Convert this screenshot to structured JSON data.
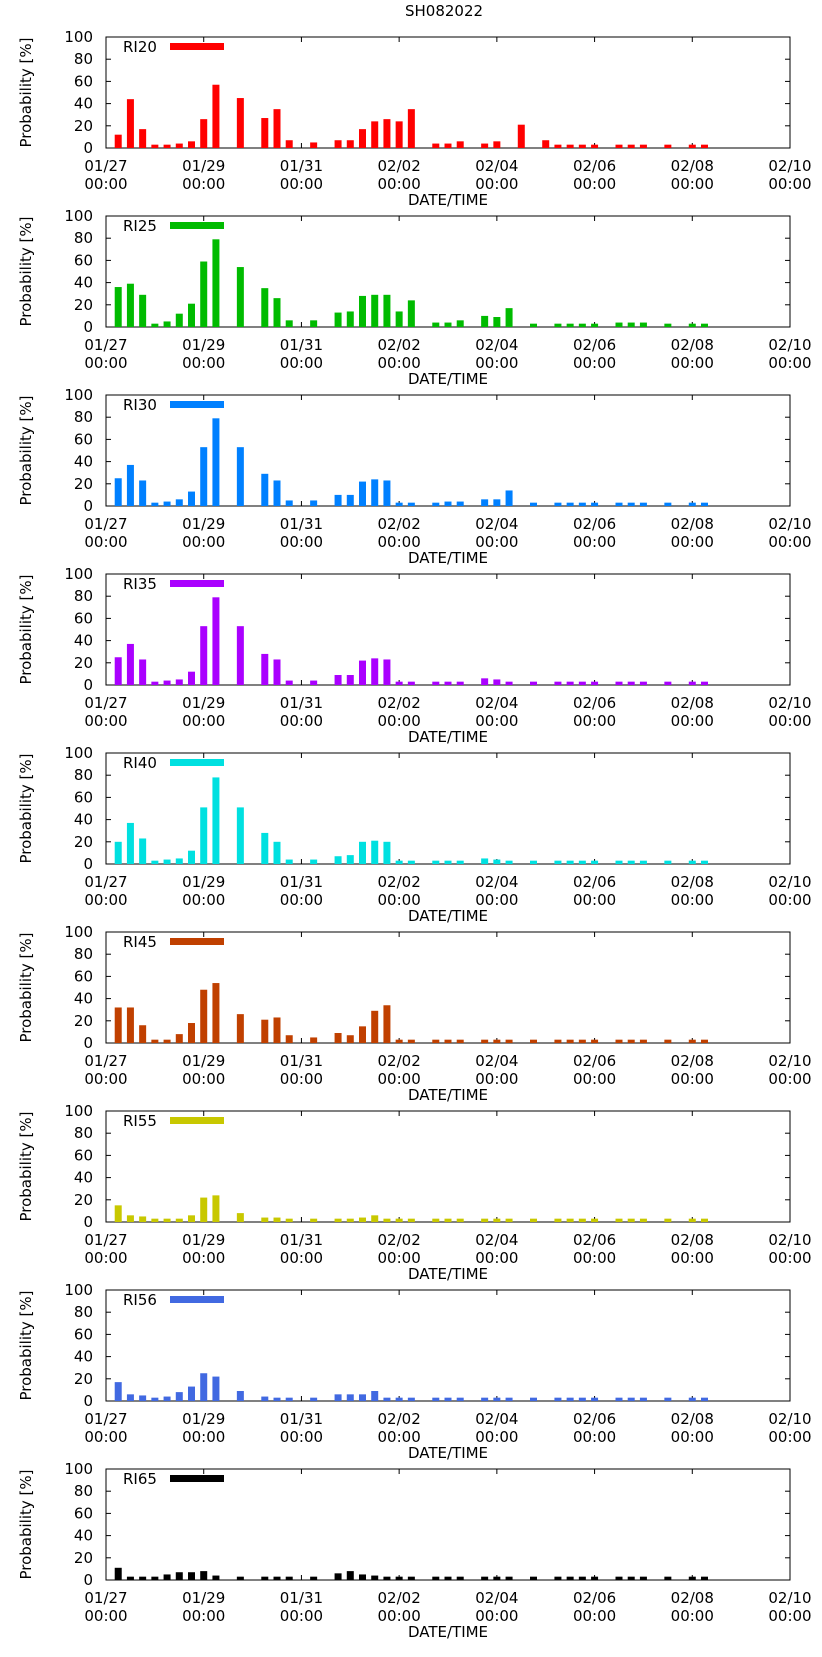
{
  "figure": {
    "title": "SH082022"
  },
  "chart_data": [
    {
      "type": "bar",
      "legend": "RI20",
      "color": "#ff0000",
      "ylabel": "Probability [%]",
      "xlabel": "DATE/TIME",
      "ylim": [
        0,
        100
      ],
      "yticks": [
        "0",
        "20",
        "40",
        "60",
        "80",
        "100"
      ],
      "xticks": [
        [
          "01/27",
          "00:00"
        ],
        [
          "01/29",
          "00:00"
        ],
        [
          "01/31",
          "00:00"
        ],
        [
          "02/02",
          "00:00"
        ],
        [
          "02/04",
          "00:00"
        ],
        [
          "02/06",
          "00:00"
        ],
        [
          "02/08",
          "00:00"
        ],
        [
          "02/10",
          "00:00"
        ]
      ],
      "x_hours": [
        6,
        12,
        18,
        24,
        30,
        36,
        42,
        48,
        54,
        66,
        78,
        84,
        90,
        102,
        114,
        120,
        126,
        132,
        138,
        144,
        150,
        162,
        168,
        174,
        186,
        192,
        204,
        216,
        222,
        228,
        234,
        240,
        252,
        258,
        264,
        276,
        288,
        294
      ],
      "values": [
        12,
        44,
        17,
        3,
        3,
        4,
        6,
        26,
        57,
        45,
        27,
        35,
        7,
        5,
        7,
        7,
        17,
        24,
        26,
        24,
        35,
        4,
        4,
        6,
        4,
        6,
        21,
        7,
        3,
        3,
        3,
        3,
        3,
        3,
        3,
        3,
        3,
        3
      ]
    },
    {
      "type": "bar",
      "legend": "RI25",
      "color": "#00bb00",
      "ylabel": "Probability [%]",
      "xlabel": "DATE/TIME",
      "ylim": [
        0,
        100
      ],
      "yticks": [
        "0",
        "20",
        "40",
        "60",
        "80",
        "100"
      ],
      "xticks": [
        [
          "01/27",
          "00:00"
        ],
        [
          "01/29",
          "00:00"
        ],
        [
          "01/31",
          "00:00"
        ],
        [
          "02/02",
          "00:00"
        ],
        [
          "02/04",
          "00:00"
        ],
        [
          "02/06",
          "00:00"
        ],
        [
          "02/08",
          "00:00"
        ],
        [
          "02/10",
          "00:00"
        ]
      ],
      "x_hours": [
        6,
        12,
        18,
        24,
        30,
        36,
        42,
        48,
        54,
        66,
        78,
        84,
        90,
        102,
        114,
        120,
        126,
        132,
        138,
        144,
        150,
        162,
        168,
        174,
        186,
        192,
        198,
        210,
        222,
        228,
        234,
        240,
        252,
        258,
        264,
        276,
        288,
        294
      ],
      "values": [
        36,
        39,
        29,
        3,
        5,
        12,
        21,
        59,
        79,
        54,
        35,
        26,
        6,
        6,
        13,
        14,
        28,
        29,
        29,
        14,
        24,
        4,
        4,
        6,
        10,
        9,
        17,
        3,
        3,
        3,
        3,
        3,
        4,
        4,
        4,
        3,
        3,
        3
      ]
    },
    {
      "type": "bar",
      "legend": "RI30",
      "color": "#0080ff",
      "ylabel": "Probability [%]",
      "xlabel": "DATE/TIME",
      "ylim": [
        0,
        100
      ],
      "yticks": [
        "0",
        "20",
        "40",
        "60",
        "80",
        "100"
      ],
      "xticks": [
        [
          "01/27",
          "00:00"
        ],
        [
          "01/29",
          "00:00"
        ],
        [
          "01/31",
          "00:00"
        ],
        [
          "02/02",
          "00:00"
        ],
        [
          "02/04",
          "00:00"
        ],
        [
          "02/06",
          "00:00"
        ],
        [
          "02/08",
          "00:00"
        ],
        [
          "02/10",
          "00:00"
        ]
      ],
      "x_hours": [
        6,
        12,
        18,
        24,
        30,
        36,
        42,
        48,
        54,
        66,
        78,
        84,
        90,
        102,
        114,
        120,
        126,
        132,
        138,
        144,
        150,
        162,
        168,
        174,
        186,
        192,
        198,
        210,
        222,
        228,
        234,
        240,
        252,
        258,
        264,
        276,
        288,
        294
      ],
      "values": [
        25,
        37,
        23,
        3,
        4,
        6,
        13,
        53,
        79,
        53,
        29,
        23,
        5,
        5,
        10,
        10,
        22,
        24,
        23,
        3,
        3,
        3,
        4,
        4,
        6,
        6,
        14,
        3,
        3,
        3,
        3,
        3,
        3,
        3,
        3,
        3,
        3,
        3
      ]
    },
    {
      "type": "bar",
      "legend": "RI35",
      "color": "#aa00ff",
      "ylabel": "Probability [%]",
      "xlabel": "DATE/TIME",
      "ylim": [
        0,
        100
      ],
      "yticks": [
        "0",
        "20",
        "40",
        "60",
        "80",
        "100"
      ],
      "xticks": [
        [
          "01/27",
          "00:00"
        ],
        [
          "01/29",
          "00:00"
        ],
        [
          "01/31",
          "00:00"
        ],
        [
          "02/02",
          "00:00"
        ],
        [
          "02/04",
          "00:00"
        ],
        [
          "02/06",
          "00:00"
        ],
        [
          "02/08",
          "00:00"
        ],
        [
          "02/10",
          "00:00"
        ]
      ],
      "x_hours": [
        6,
        12,
        18,
        24,
        30,
        36,
        42,
        48,
        54,
        66,
        78,
        84,
        90,
        102,
        114,
        120,
        126,
        132,
        138,
        144,
        150,
        162,
        168,
        174,
        186,
        192,
        198,
        210,
        222,
        228,
        234,
        240,
        252,
        258,
        264,
        276,
        288,
        294
      ],
      "values": [
        25,
        37,
        23,
        3,
        4,
        5,
        12,
        53,
        79,
        53,
        28,
        23,
        4,
        4,
        9,
        9,
        22,
        24,
        23,
        3,
        3,
        3,
        3,
        3,
        6,
        5,
        3,
        3,
        3,
        3,
        3,
        3,
        3,
        3,
        3,
        3,
        3,
        3
      ]
    },
    {
      "type": "bar",
      "legend": "RI40",
      "color": "#00e0e0",
      "ylabel": "Probability [%]",
      "xlabel": "DATE/TIME",
      "ylim": [
        0,
        100
      ],
      "yticks": [
        "0",
        "20",
        "40",
        "60",
        "80",
        "100"
      ],
      "xticks": [
        [
          "01/27",
          "00:00"
        ],
        [
          "01/29",
          "00:00"
        ],
        [
          "01/31",
          "00:00"
        ],
        [
          "02/02",
          "00:00"
        ],
        [
          "02/04",
          "00:00"
        ],
        [
          "02/06",
          "00:00"
        ],
        [
          "02/08",
          "00:00"
        ],
        [
          "02/10",
          "00:00"
        ]
      ],
      "x_hours": [
        6,
        12,
        18,
        24,
        30,
        36,
        42,
        48,
        54,
        66,
        78,
        84,
        90,
        102,
        114,
        120,
        126,
        132,
        138,
        144,
        150,
        162,
        168,
        174,
        186,
        192,
        198,
        210,
        222,
        228,
        234,
        240,
        252,
        258,
        264,
        276,
        288,
        294
      ],
      "values": [
        20,
        37,
        23,
        3,
        4,
        5,
        12,
        51,
        78,
        51,
        28,
        20,
        4,
        4,
        7,
        8,
        20,
        21,
        20,
        3,
        3,
        3,
        3,
        3,
        5,
        4,
        3,
        3,
        3,
        3,
        3,
        3,
        3,
        3,
        3,
        3,
        3,
        3
      ]
    },
    {
      "type": "bar",
      "legend": "RI45",
      "color": "#c04000",
      "ylabel": "Probability [%]",
      "xlabel": "DATE/TIME",
      "ylim": [
        0,
        100
      ],
      "yticks": [
        "0",
        "20",
        "40",
        "60",
        "80",
        "100"
      ],
      "xticks": [
        [
          "01/27",
          "00:00"
        ],
        [
          "01/29",
          "00:00"
        ],
        [
          "01/31",
          "00:00"
        ],
        [
          "02/02",
          "00:00"
        ],
        [
          "02/04",
          "00:00"
        ],
        [
          "02/06",
          "00:00"
        ],
        [
          "02/08",
          "00:00"
        ],
        [
          "02/10",
          "00:00"
        ]
      ],
      "x_hours": [
        6,
        12,
        18,
        24,
        30,
        36,
        42,
        48,
        54,
        66,
        78,
        84,
        90,
        102,
        114,
        120,
        126,
        132,
        138,
        144,
        150,
        162,
        168,
        174,
        186,
        192,
        198,
        210,
        222,
        228,
        234,
        240,
        252,
        258,
        264,
        276,
        288,
        294
      ],
      "values": [
        32,
        32,
        16,
        3,
        3,
        8,
        18,
        48,
        54,
        26,
        21,
        23,
        7,
        5,
        9,
        7,
        15,
        29,
        34,
        3,
        3,
        3,
        3,
        3,
        3,
        3,
        3,
        3,
        3,
        3,
        3,
        3,
        3,
        3,
        3,
        3,
        3,
        3
      ]
    },
    {
      "type": "bar",
      "legend": "RI55",
      "color": "#c8c800",
      "ylabel": "Probability [%]",
      "xlabel": "DATE/TIME",
      "ylim": [
        0,
        100
      ],
      "yticks": [
        "0",
        "20",
        "40",
        "60",
        "80",
        "100"
      ],
      "xticks": [
        [
          "01/27",
          "00:00"
        ],
        [
          "01/29",
          "00:00"
        ],
        [
          "01/31",
          "00:00"
        ],
        [
          "02/02",
          "00:00"
        ],
        [
          "02/04",
          "00:00"
        ],
        [
          "02/06",
          "00:00"
        ],
        [
          "02/08",
          "00:00"
        ],
        [
          "02/10",
          "00:00"
        ]
      ],
      "x_hours": [
        6,
        12,
        18,
        24,
        30,
        36,
        42,
        48,
        54,
        66,
        78,
        84,
        90,
        102,
        114,
        120,
        126,
        132,
        138,
        144,
        150,
        162,
        168,
        174,
        186,
        192,
        198,
        210,
        222,
        228,
        234,
        240,
        252,
        258,
        264,
        276,
        288,
        294
      ],
      "values": [
        15,
        6,
        5,
        3,
        3,
        3,
        6,
        22,
        24,
        8,
        4,
        4,
        3,
        3,
        3,
        3,
        4,
        6,
        3,
        3,
        3,
        3,
        3,
        3,
        3,
        3,
        3,
        3,
        3,
        3,
        3,
        3,
        3,
        3,
        3,
        3,
        3,
        3
      ]
    },
    {
      "type": "bar",
      "legend": "RI56",
      "color": "#4169e1",
      "ylabel": "Probability [%]",
      "xlabel": "DATE/TIME",
      "ylim": [
        0,
        100
      ],
      "yticks": [
        "0",
        "20",
        "40",
        "60",
        "80",
        "100"
      ],
      "xticks": [
        [
          "01/27",
          "00:00"
        ],
        [
          "01/29",
          "00:00"
        ],
        [
          "01/31",
          "00:00"
        ],
        [
          "02/02",
          "00:00"
        ],
        [
          "02/04",
          "00:00"
        ],
        [
          "02/06",
          "00:00"
        ],
        [
          "02/08",
          "00:00"
        ],
        [
          "02/10",
          "00:00"
        ]
      ],
      "x_hours": [
        6,
        12,
        18,
        24,
        30,
        36,
        42,
        48,
        54,
        66,
        78,
        84,
        90,
        102,
        114,
        120,
        126,
        132,
        138,
        144,
        150,
        162,
        168,
        174,
        186,
        192,
        198,
        210,
        222,
        228,
        234,
        240,
        252,
        258,
        264,
        276,
        288,
        294
      ],
      "values": [
        17,
        6,
        5,
        3,
        4,
        8,
        13,
        25,
        22,
        9,
        4,
        3,
        3,
        3,
        6,
        6,
        6,
        9,
        3,
        3,
        3,
        3,
        3,
        3,
        3,
        3,
        3,
        3,
        3,
        3,
        3,
        3,
        3,
        3,
        3,
        3,
        3,
        3
      ]
    },
    {
      "type": "bar",
      "legend": "RI65",
      "color": "#000000",
      "ylabel": "Probability [%]",
      "xlabel": "DATE/TIME",
      "ylim": [
        0,
        100
      ],
      "yticks": [
        "0",
        "20",
        "40",
        "60",
        "80",
        "100"
      ],
      "xticks": [
        [
          "01/27",
          "00:00"
        ],
        [
          "01/29",
          "00:00"
        ],
        [
          "01/31",
          "00:00"
        ],
        [
          "02/02",
          "00:00"
        ],
        [
          "02/04",
          "00:00"
        ],
        [
          "02/06",
          "00:00"
        ],
        [
          "02/08",
          "00:00"
        ],
        [
          "02/10",
          "00:00"
        ]
      ],
      "x_hours": [
        6,
        12,
        18,
        24,
        30,
        36,
        42,
        48,
        54,
        66,
        78,
        84,
        90,
        102,
        114,
        120,
        126,
        132,
        138,
        144,
        150,
        162,
        168,
        174,
        186,
        192,
        198,
        210,
        222,
        228,
        234,
        240,
        252,
        258,
        264,
        276,
        288,
        294
      ],
      "values": [
        11,
        3,
        3,
        3,
        5,
        7,
        7,
        8,
        4,
        3,
        3,
        3,
        3,
        3,
        6,
        8,
        5,
        4,
        3,
        3,
        3,
        3,
        3,
        3,
        3,
        3,
        3,
        3,
        3,
        3,
        3,
        3,
        3,
        3,
        3,
        3,
        3,
        3
      ]
    }
  ]
}
